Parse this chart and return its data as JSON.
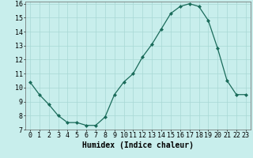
{
  "x": [
    0,
    1,
    2,
    3,
    4,
    5,
    6,
    7,
    8,
    9,
    10,
    11,
    12,
    13,
    14,
    15,
    16,
    17,
    18,
    19,
    20,
    21,
    22,
    23
  ],
  "y": [
    10.4,
    9.5,
    8.8,
    8.0,
    7.5,
    7.5,
    7.3,
    7.3,
    7.9,
    9.5,
    10.4,
    11.0,
    12.2,
    13.1,
    14.2,
    15.3,
    15.8,
    16.0,
    15.8,
    14.8,
    12.8,
    10.5,
    9.5,
    9.5
  ],
  "xlabel": "Humidex (Indice chaleur)",
  "ylim": [
    7,
    16
  ],
  "xlim": [
    -0.5,
    23.5
  ],
  "yticks": [
    7,
    8,
    9,
    10,
    11,
    12,
    13,
    14,
    15,
    16
  ],
  "xticks": [
    0,
    1,
    2,
    3,
    4,
    5,
    6,
    7,
    8,
    9,
    10,
    11,
    12,
    13,
    14,
    15,
    16,
    17,
    18,
    19,
    20,
    21,
    22,
    23
  ],
  "line_color": "#1a6b5a",
  "marker": "D",
  "marker_size": 2.0,
  "bg_color": "#c8eeec",
  "grid_color": "#a8d8d4",
  "xlabel_fontsize": 7,
  "tick_fontsize": 6,
  "linewidth": 0.9
}
